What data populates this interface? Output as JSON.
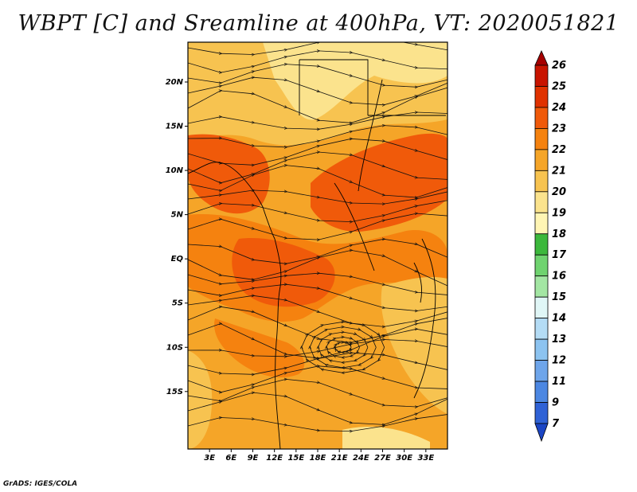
{
  "title": "WBPT [C] and Sreamline at 400hPa, VT: 2020051821",
  "credit": "GrADS: IGES/COLA",
  "map": {
    "lon_range": [
      0,
      36
    ],
    "lat_range": [
      -21.5,
      24.5
    ],
    "lon_ticks": [
      {
        "value": 3,
        "label": "3E"
      },
      {
        "value": 6,
        "label": "6E"
      },
      {
        "value": 9,
        "label": "9E"
      },
      {
        "value": 12,
        "label": "12E"
      },
      {
        "value": 15,
        "label": "15E"
      },
      {
        "value": 18,
        "label": "18E"
      },
      {
        "value": 21,
        "label": "21E"
      },
      {
        "value": 24,
        "label": "24E"
      },
      {
        "value": 27,
        "label": "27E"
      },
      {
        "value": 30,
        "label": "30E"
      },
      {
        "value": 33,
        "label": "33E"
      }
    ],
    "lat_ticks": [
      {
        "value": 20,
        "label": "20N"
      },
      {
        "value": 15,
        "label": "15N"
      },
      {
        "value": 10,
        "label": "10N"
      },
      {
        "value": 5,
        "label": "5N"
      },
      {
        "value": 0,
        "label": "EQ"
      },
      {
        "value": -5,
        "label": "5S"
      },
      {
        "value": -10,
        "label": "10S"
      },
      {
        "value": -15,
        "label": "15S"
      }
    ]
  },
  "colorbar": {
    "labels": [
      "26",
      "25",
      "24",
      "23",
      "22",
      "21",
      "20",
      "19",
      "18",
      "17",
      "16",
      "15",
      "14",
      "13",
      "12",
      "11",
      "9",
      "7"
    ],
    "colors": [
      "#a50000",
      "#c81400",
      "#e03200",
      "#f05a0a",
      "#f5820f",
      "#f5a528",
      "#f7c350",
      "#fbe38d",
      "#fff5b4",
      "#3cb83c",
      "#6fd36f",
      "#a3e6a3",
      "#e0f6f6",
      "#b4dcf5",
      "#8cc3f0",
      "#6ea5ea",
      "#4c87e2",
      "#2f62d6",
      "#1b45c4"
    ]
  }
}
